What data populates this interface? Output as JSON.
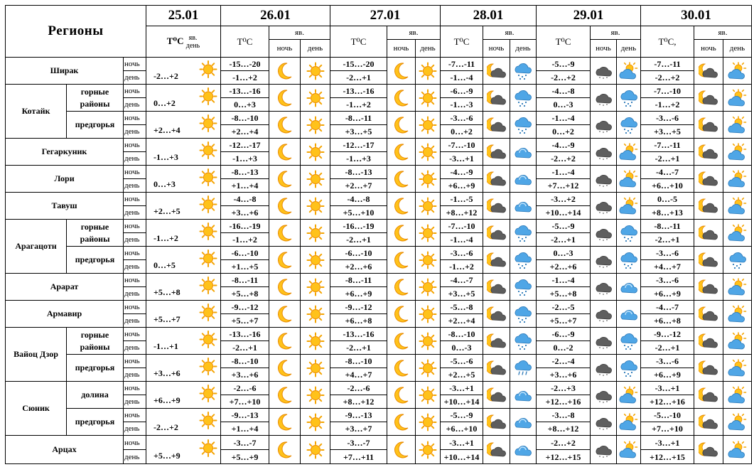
{
  "header": {
    "regions_label": "Регионы",
    "dates": [
      "25.01",
      "26.01",
      "27.01",
      "28.01",
      "29.01",
      "30.01"
    ],
    "temp_label": "T⁰C",
    "temp_label_last": "T⁰C,",
    "phenomenon_label": "яв.",
    "night_label": "ночь",
    "day_label": "день"
  },
  "rows": [
    {
      "region": "Ширак",
      "sub": "",
      "night": "ночь",
      "day": "день",
      "t1": "-2…+2",
      "i1": "sun",
      "d": [
        [
          "-15…-20",
          "-1…+2",
          "moon",
          "sun"
        ],
        [
          "-15…-20",
          "-2…+1",
          "moon",
          "sun"
        ],
        [
          "-7…-11",
          "-1…-4",
          "moon-cloud",
          "snow-cloud"
        ],
        [
          "-5…-9",
          "-2…+2",
          "dark-cloud",
          "sun-cloud"
        ],
        [
          "-7…-11",
          "-2…+2",
          "moon-cloud",
          "sun-cloud"
        ]
      ]
    },
    {
      "region": "Котайк",
      "sub": "горные районы",
      "night": "ночь",
      "day": "день",
      "t1": "0…+2",
      "i1": "sun",
      "d": [
        [
          "-13…-16",
          "0…+3",
          "moon",
          "sun"
        ],
        [
          "-13…-16",
          "-1…+2",
          "moon",
          "sun"
        ],
        [
          "-6…-9",
          "-1…-3",
          "moon-cloud",
          "snow-cloud"
        ],
        [
          "-4…-8",
          "0…-3",
          "dark-cloud",
          "snow-cloud"
        ],
        [
          "-7…-10",
          "-1…+2",
          "moon-cloud",
          "sun-cloud"
        ]
      ]
    },
    {
      "region": "",
      "sub": "предгорья",
      "night": "ночь",
      "day": "день",
      "t1": "+2…+4",
      "i1": "sun",
      "d": [
        [
          "-8…-10",
          "+2…+4",
          "moon",
          "sun"
        ],
        [
          "-8…-11",
          "+3…+5",
          "moon",
          "sun"
        ],
        [
          "-3…-6",
          "0…+2",
          "moon-cloud",
          "snow-cloud"
        ],
        [
          "-1…-4",
          "0…+2",
          "dark-cloud",
          "snow-cloud"
        ],
        [
          "-3…-6",
          "+3…+5",
          "moon-cloud",
          "sun-cloud"
        ]
      ]
    },
    {
      "region": "Гегаркуник",
      "sub": "",
      "night": "ночь",
      "day": "день",
      "t1": "-1…+3",
      "i1": "sun",
      "d": [
        [
          "-12…-17",
          "-1…+3",
          "moon",
          "sun"
        ],
        [
          "-12…-17",
          "-1…+3",
          "moon",
          "sun"
        ],
        [
          "-7…-10",
          "-3…+1",
          "moon-cloud",
          "cloud"
        ],
        [
          "-4…-9",
          "-2…+2",
          "dark-cloud",
          "sun-cloud"
        ],
        [
          "-7…-11",
          "-2…+1",
          "moon-cloud",
          "sun-cloud"
        ]
      ]
    },
    {
      "region": "Лори",
      "sub": "",
      "night": "ночь",
      "day": "день",
      "t1": "0…+3",
      "i1": "sun",
      "d": [
        [
          "-8…-13",
          "+1…+4",
          "moon",
          "sun"
        ],
        [
          "-8…-13",
          "+2…+7",
          "moon",
          "sun"
        ],
        [
          "-4…-9",
          "+6…+9",
          "moon-cloud",
          "cloud"
        ],
        [
          "-1…-4",
          "+7…+12",
          "dark-cloud",
          "sun-cloud"
        ],
        [
          "-4…-7",
          "+6…+10",
          "moon-cloud",
          "sun-cloud"
        ]
      ]
    },
    {
      "region": "Тавуш",
      "sub": "",
      "night": "ночь",
      "day": "день",
      "t1": "+2…+5",
      "i1": "sun",
      "d": [
        [
          "-4…-8",
          "+3…+6",
          "moon",
          "sun"
        ],
        [
          "-4…-8",
          "+5…+10",
          "moon",
          "sun"
        ],
        [
          "-1…-5",
          "+8…+12",
          "moon-cloud",
          "cloud"
        ],
        [
          "-3…+2",
          "+10…+14",
          "dark-cloud",
          "sun-cloud"
        ],
        [
          "0…-5",
          "+8…+13",
          "moon-cloud",
          "sun-cloud"
        ]
      ]
    },
    {
      "region": "Арагацотн",
      "sub": "горные районы",
      "night": "ночь",
      "day": "день",
      "t1": "-1…+2",
      "i1": "sun",
      "d": [
        [
          "-16…-19",
          "-1…+2",
          "moon",
          "sun"
        ],
        [
          "-16…-19",
          "-2…+1",
          "moon",
          "sun"
        ],
        [
          "-7…-10",
          "-1…-4",
          "moon-cloud",
          "snow-cloud"
        ],
        [
          "-5…-9",
          "-2…+1",
          "dark-cloud",
          "snow-cloud"
        ],
        [
          "-8…-11",
          "-2…+1",
          "moon-cloud",
          "sun-cloud"
        ]
      ]
    },
    {
      "region": "",
      "sub": "предгорья",
      "night": "ночь",
      "day": "день",
      "t1": "0…+5",
      "i1": "sun",
      "d": [
        [
          "-6…-10",
          "+1…+5",
          "moon",
          "sun"
        ],
        [
          "-6…-10",
          "+2…+6",
          "moon",
          "sun"
        ],
        [
          "-3…-6",
          "-1…+2",
          "moon-cloud",
          "snow-cloud"
        ],
        [
          "0…-3",
          "+2…+6",
          "dark-cloud",
          "snow-cloud"
        ],
        [
          "-3…-6",
          "+4…+7",
          "moon-cloud",
          "snow-cloud"
        ]
      ]
    },
    {
      "region": "Арарат",
      "sub": "",
      "night": "ночь",
      "day": "день",
      "t1": "+5…+8",
      "i1": "sun",
      "d": [
        [
          "-8…-11",
          "+5…+8",
          "moon",
          "sun"
        ],
        [
          "-8…-11",
          "+6…+9",
          "moon",
          "sun"
        ],
        [
          "-4…-7",
          "+3…+5",
          "moon-cloud",
          "snow-cloud"
        ],
        [
          "-1…-4",
          "+5…+8",
          "dark-cloud",
          "cloud"
        ],
        [
          "-3…-6",
          "+6…+9",
          "moon-cloud",
          "sun-cloud"
        ]
      ]
    },
    {
      "region": "Армавир",
      "sub": "",
      "night": "ночь",
      "day": "день",
      "t1": "+5…+7",
      "i1": "sun",
      "d": [
        [
          "-9…-12",
          "+5…+7",
          "moon",
          "sun"
        ],
        [
          "-9…-12",
          "+6…+8",
          "moon",
          "sun"
        ],
        [
          "-5…-8",
          "+2…+4",
          "moon-cloud",
          "snow-cloud"
        ],
        [
          "-2…-5",
          "+5…+7",
          "dark-cloud",
          "cloud"
        ],
        [
          "-4…-7",
          "+6…+8",
          "moon-cloud",
          "sun-cloud"
        ]
      ]
    },
    {
      "region": "Вайоц Дзор",
      "sub": "горные районы",
      "night": "ночь",
      "day": "день",
      "t1": "-1…+1",
      "i1": "sun",
      "d": [
        [
          "-13…-16",
          "-2…+1",
          "moon",
          "sun"
        ],
        [
          "-13…-16",
          "-2…+1",
          "moon",
          "sun"
        ],
        [
          "-8…-10",
          "0…-3",
          "moon-cloud",
          "snow-cloud"
        ],
        [
          "-6…-9",
          "0…-2",
          "dark-cloud",
          "snow-cloud"
        ],
        [
          "-9…-12",
          "-2…+1",
          "moon-cloud",
          "sun-cloud"
        ]
      ]
    },
    {
      "region": "",
      "sub": "предгорья",
      "night": "ночь",
      "day": "день",
      "t1": "+3…+6",
      "i1": "sun",
      "d": [
        [
          "-8…-10",
          "+3…+6",
          "moon",
          "sun"
        ],
        [
          "-8…-10",
          "+4…+7",
          "moon",
          "sun"
        ],
        [
          "-5…-6",
          "+2…+5",
          "moon-cloud",
          "rain-cloud"
        ],
        [
          "-2…-4",
          "+3…+6",
          "dark-cloud",
          "snow-cloud"
        ],
        [
          "-3…-6",
          "+6…+9",
          "moon-cloud",
          "sun-cloud"
        ]
      ]
    },
    {
      "region": "Сюник",
      "sub": "долина",
      "night": "ночь",
      "day": "день",
      "t1": "+6…+9",
      "i1": "sun",
      "d": [
        [
          "-2…-6",
          "+7…+10",
          "moon",
          "sun"
        ],
        [
          "-2…-6",
          "+8…+12",
          "moon",
          "sun"
        ],
        [
          "-3…+1",
          "+10…+14",
          "moon-cloud",
          "cloud"
        ],
        [
          "-2…+3",
          "+12…+16",
          "dark-cloud",
          "sun-cloud"
        ],
        [
          "-3…+1",
          "+12…+16",
          "moon-cloud",
          "sun-cloud"
        ]
      ]
    },
    {
      "region": "",
      "sub": "предгорья",
      "night": "ночь",
      "day": "день",
      "t1": "-2…+2",
      "i1": "sun",
      "d": [
        [
          "-9…-13",
          "+1…+4",
          "moon",
          "sun"
        ],
        [
          "-9…-13",
          "+3…+7",
          "moon",
          "sun"
        ],
        [
          "-5…-9",
          "+6…+10",
          "moon-cloud",
          "cloud"
        ],
        [
          "-3…-8",
          "+8…+12",
          "dark-cloud",
          "sun-cloud"
        ],
        [
          "-5…-10",
          "+7…+10",
          "moon-cloud",
          "sun-cloud"
        ]
      ]
    },
    {
      "region": "Арцах",
      "sub": "",
      "night": "ночь",
      "day": "день",
      "t1": "+5…+9",
      "i1": "sun",
      "d": [
        [
          "-3…-7",
          "+5…+9",
          "moon",
          "sun"
        ],
        [
          "-3…-7",
          "+7…+11",
          "moon",
          "sun"
        ],
        [
          "-3…+1",
          "+10…+14",
          "moon-cloud",
          "cloud"
        ],
        [
          "-2…+2",
          "+12…+15",
          "dark-cloud",
          "sun-cloud"
        ],
        [
          "-3…+1",
          "+12…+15",
          "moon-cloud",
          "sun-cloud"
        ]
      ]
    }
  ]
}
